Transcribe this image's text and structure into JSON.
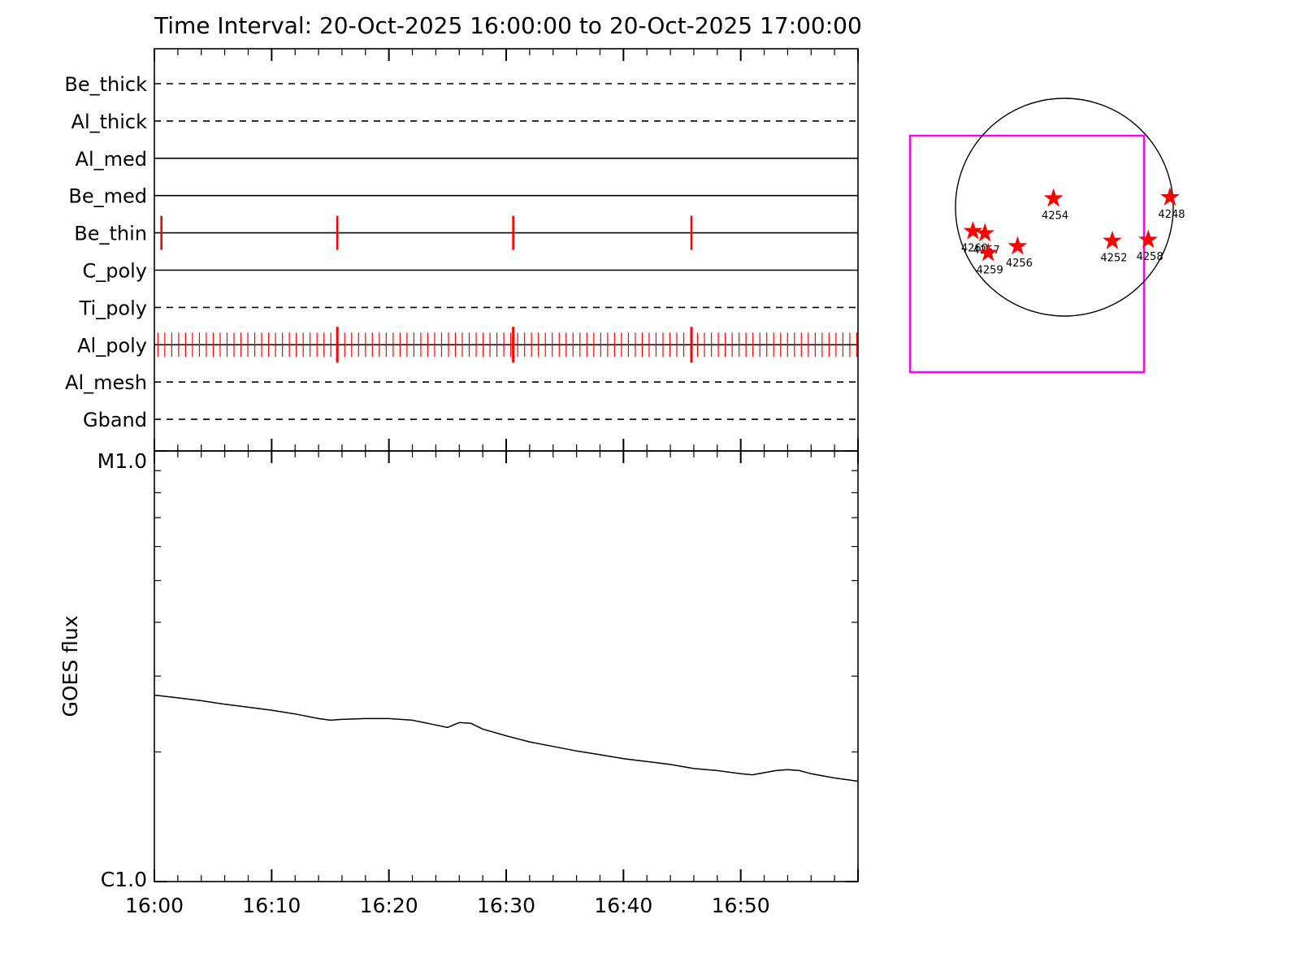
{
  "title": "Time Interval: 20-Oct-2025 16:00:00 to 20-Oct-2025 17:00:00",
  "colors": {
    "axis": "#000000",
    "event": "#ff0000",
    "star": "#ff0000",
    "fov_box": "#ff00ff",
    "flux_line": "#000000"
  },
  "chart_data": [
    {
      "id": "filter-timeline",
      "type": "timeline",
      "x_range_min": [
        0,
        60
      ],
      "x_major_every_min": 10,
      "x_minor_every_min": 2,
      "rows": [
        {
          "label": "Be_thick",
          "line": "dashed"
        },
        {
          "label": "Al_thick",
          "line": "dashed"
        },
        {
          "label": "Al_med",
          "line": "solid"
        },
        {
          "label": "Be_med",
          "line": "solid"
        },
        {
          "label": "Be_thin",
          "line": "solid",
          "events_min": [
            0.6,
            15.6,
            30.6,
            45.8
          ]
        },
        {
          "label": "C_poly",
          "line": "solid"
        },
        {
          "label": "Ti_poly",
          "line": "dashed"
        },
        {
          "label": "Al_poly",
          "line": "solid",
          "event_train": {
            "start_min": 0.3,
            "end_min": 59.9,
            "interval_min": 0.59
          },
          "major_events_min": [
            15.6,
            30.6,
            45.8
          ]
        },
        {
          "label": "Al_mesh",
          "line": "dashed"
        },
        {
          "label": "Gband",
          "line": "dashed"
        }
      ]
    },
    {
      "id": "goes-flux",
      "type": "line",
      "ylabel": "GOES flux",
      "y_scale": "log",
      "y_ticks": [
        {
          "label": "M1.0",
          "flux_c": 10
        },
        {
          "label": "C1.0",
          "flux_c": 1
        }
      ],
      "x_ticks": [
        {
          "label": "16:00",
          "min": 0
        },
        {
          "label": "16:10",
          "min": 10
        },
        {
          "label": "16:20",
          "min": 20
        },
        {
          "label": "16:30",
          "min": 30
        },
        {
          "label": "16:40",
          "min": 40
        },
        {
          "label": "16:50",
          "min": 50
        }
      ],
      "series": {
        "name": "GOES flux",
        "x_min": [
          0,
          2,
          4,
          6,
          8,
          10,
          12,
          14,
          15,
          16,
          18,
          20,
          22,
          24,
          25,
          26,
          27,
          28,
          30,
          32,
          34,
          36,
          38,
          40,
          42,
          44,
          46,
          48,
          50,
          51,
          52,
          53,
          54,
          55,
          56,
          58,
          60
        ],
        "flux_c": [
          2.71,
          2.67,
          2.63,
          2.58,
          2.54,
          2.5,
          2.45,
          2.39,
          2.37,
          2.38,
          2.39,
          2.39,
          2.37,
          2.31,
          2.28,
          2.34,
          2.33,
          2.26,
          2.18,
          2.11,
          2.06,
          2.01,
          1.97,
          1.93,
          1.9,
          1.87,
          1.83,
          1.81,
          1.78,
          1.77,
          1.79,
          1.81,
          1.82,
          1.81,
          1.78,
          1.74,
          1.71
        ]
      }
    },
    {
      "id": "solar-map",
      "type": "scatter",
      "disk": true,
      "fov_box": true,
      "active_regions": [
        {
          "label": "4254",
          "dx": -0.1,
          "dy": -0.08
        },
        {
          "label": "4248",
          "dx": 0.97,
          "dy": -0.09
        },
        {
          "label": "4260",
          "dx": -0.84,
          "dy": 0.22
        },
        {
          "label": "4257",
          "dx": -0.73,
          "dy": 0.24
        },
        {
          "label": "4259",
          "dx": -0.7,
          "dy": 0.42
        },
        {
          "label": "4256",
          "dx": -0.43,
          "dy": 0.36
        },
        {
          "label": "4252",
          "dx": 0.44,
          "dy": 0.31
        },
        {
          "label": "4258",
          "dx": 0.77,
          "dy": 0.3
        }
      ]
    }
  ]
}
